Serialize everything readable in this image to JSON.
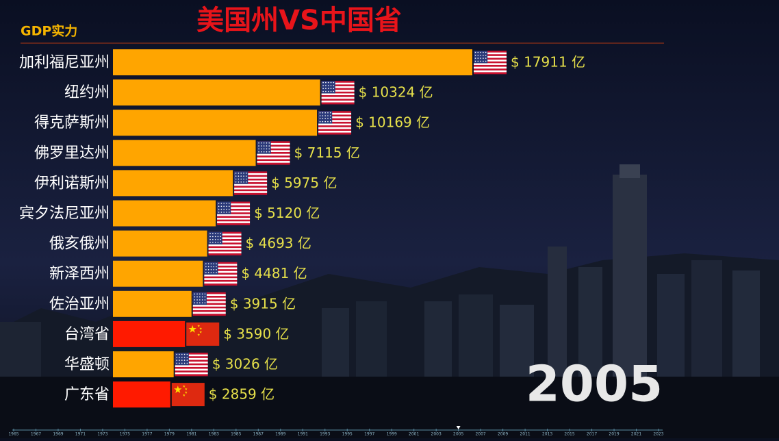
{
  "chart_data": {
    "type": "barh",
    "title": "美国州VS中国省",
    "subtitle": "GDP实力",
    "year": "2005",
    "categories": [
      "加利福尼亚州",
      "纽约州",
      "得克萨斯州",
      "佛罗里达州",
      "伊利诺斯州",
      "宾夕法尼亚州",
      "俄亥俄州",
      "新泽西州",
      "佐治亚州",
      "台湾省",
      "华盛顿",
      "广东省"
    ],
    "values": [
      17911,
      10324,
      10169,
      7115,
      5975,
      5120,
      4693,
      4481,
      3915,
      3590,
      3026,
      2859
    ],
    "value_labels": [
      "$ 17911 亿",
      "$ 10324 亿",
      "$ 10169 亿",
      "$ 7115 亿",
      "$ 5975 亿",
      "$ 5120 亿",
      "$ 4693 亿",
      "$ 4481 亿",
      "$ 3915 亿",
      "$ 3590 亿",
      "$ 3026 亿",
      "$ 2859 亿"
    ],
    "colors": [
      "#ffa500",
      "#ffa500",
      "#ffa500",
      "#ffa500",
      "#ffa500",
      "#ffa500",
      "#ffa500",
      "#ffa500",
      "#ffa500",
      "#ff1a00",
      "#ffa500",
      "#ff1a00"
    ],
    "xlim": [
      0,
      17911
    ],
    "timeline": [
      1965,
      1967,
      1969,
      1971,
      1973,
      1975,
      1977,
      1979,
      1981,
      1983,
      1985,
      1987,
      1989,
      1991,
      1993,
      1995,
      1997,
      1999,
      2001,
      2003,
      2005,
      2007,
      2009,
      2011,
      2013,
      2015,
      2017,
      2019,
      2021,
      2023
    ]
  }
}
